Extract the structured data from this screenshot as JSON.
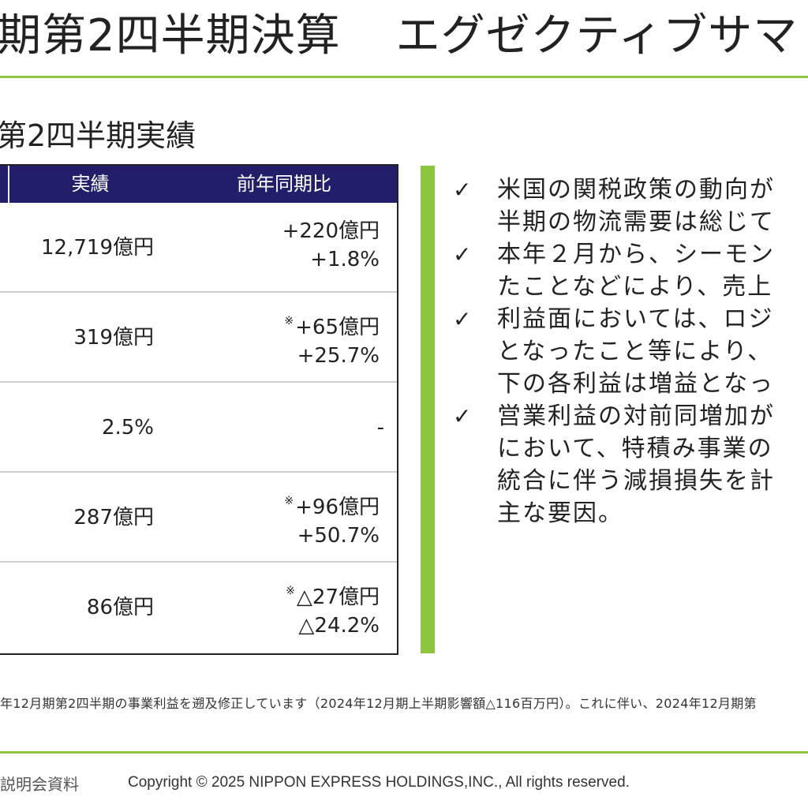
{
  "header": {
    "title_part1": "期第2四半期決算",
    "title_part2": "エグゼクティブサマ"
  },
  "section_heading": "第2四半期実績",
  "table": {
    "columns": {
      "actual": "実績",
      "yoy": "前年同期比"
    },
    "rows": [
      {
        "actual": "12,719億円",
        "yoy_mark": "",
        "yoy_amount": "+220億円",
        "yoy_pct": "+1.8%"
      },
      {
        "actual": "319億円",
        "yoy_mark": "※",
        "yoy_amount": "+65億円",
        "yoy_pct": "+25.7%"
      },
      {
        "actual": "2.5%",
        "yoy_dash": "-"
      },
      {
        "actual": "287億円",
        "yoy_mark": "※",
        "yoy_amount": "+96億円",
        "yoy_pct": "+50.7%"
      },
      {
        "actual": "86億円",
        "yoy_mark": "※",
        "yoy_amount": "△27億円",
        "yoy_pct": "△24.2%"
      }
    ]
  },
  "summary_bullets": [
    {
      "check": "✓",
      "lines": [
        "米国の関税政策の動向が",
        "半期の物流需要は総じて"
      ]
    },
    {
      "check": "✓",
      "lines": [
        "本年２月から、シーモン",
        "たことなどにより、売上"
      ]
    },
    {
      "check": "✓",
      "lines": [
        "利益面においては、ロジ",
        "となったこと等により、",
        "下の各利益は増益となっ"
      ]
    },
    {
      "check": "✓",
      "lines": [
        "営業利益の対前同増加が",
        "において、特積み事業の",
        "統合に伴う減損損失を計",
        "主な要因。"
      ]
    }
  ],
  "footnote": "年12月期第2四半期の事業利益を遡及修正しています（2024年12月期上半期影響額△116百万円）。これに伴い、2024年12月期第",
  "footer": {
    "left_text": "説明会資料",
    "copyright": "Copyright © 2025 NIPPON EXPRESS HOLDINGS,INC., All rights reserved."
  },
  "colors": {
    "accent_green": "#8cc63f",
    "table_header_navy": "#221e6a"
  }
}
